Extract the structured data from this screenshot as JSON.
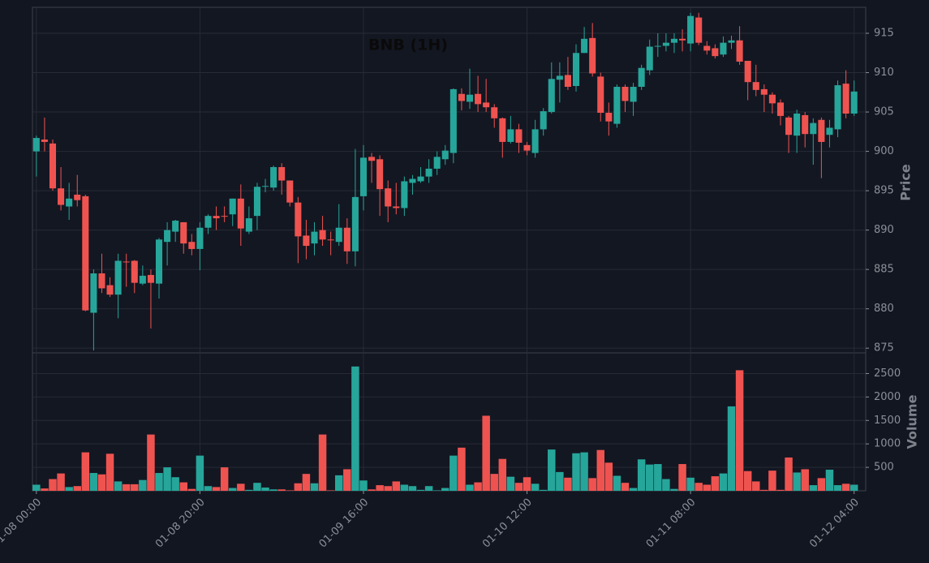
{
  "chart_data": {
    "type": "candlestick",
    "title": "BNB (1H)",
    "ylabel": "Price",
    "volume_ylabel": "Volume",
    "x": [
      "01-08 00:00",
      "01-08 01:00",
      "01-08 02:00",
      "01-08 03:00",
      "01-08 04:00",
      "01-08 05:00",
      "01-08 06:00",
      "01-08 07:00",
      "01-08 08:00",
      "01-08 09:00",
      "01-08 10:00",
      "01-08 11:00",
      "01-08 12:00",
      "01-08 13:00",
      "01-08 14:00",
      "01-08 15:00",
      "01-08 16:00",
      "01-08 17:00",
      "01-08 18:00",
      "01-08 19:00",
      "01-08 20:00",
      "01-08 21:00",
      "01-08 22:00",
      "01-08 23:00",
      "01-09 00:00",
      "01-09 01:00",
      "01-09 02:00",
      "01-09 03:00",
      "01-09 04:00",
      "01-09 05:00",
      "01-09 06:00",
      "01-09 07:00",
      "01-09 08:00",
      "01-09 09:00",
      "01-09 10:00",
      "01-09 11:00",
      "01-09 12:00",
      "01-09 13:00",
      "01-09 14:00",
      "01-09 15:00",
      "01-09 16:00",
      "01-09 17:00",
      "01-09 18:00",
      "01-09 19:00",
      "01-09 20:00",
      "01-09 21:00",
      "01-09 22:00",
      "01-09 23:00",
      "01-10 00:00",
      "01-10 01:00",
      "01-10 02:00",
      "01-10 03:00",
      "01-10 04:00",
      "01-10 05:00",
      "01-10 06:00",
      "01-10 07:00",
      "01-10 08:00",
      "01-10 09:00",
      "01-10 10:00",
      "01-10 11:00",
      "01-10 12:00",
      "01-10 13:00",
      "01-10 14:00",
      "01-10 15:00",
      "01-10 16:00",
      "01-10 17:00",
      "01-10 18:00",
      "01-10 19:00",
      "01-10 20:00",
      "01-10 21:00",
      "01-10 22:00",
      "01-10 23:00",
      "01-11 00:00",
      "01-11 01:00",
      "01-11 02:00",
      "01-11 03:00",
      "01-11 04:00",
      "01-11 05:00",
      "01-11 06:00",
      "01-11 07:00",
      "01-11 08:00",
      "01-11 09:00",
      "01-11 10:00",
      "01-11 11:00",
      "01-11 12:00",
      "01-11 13:00",
      "01-11 14:00",
      "01-11 15:00",
      "01-11 16:00",
      "01-11 17:00",
      "01-11 18:00",
      "01-11 19:00",
      "01-11 20:00",
      "01-11 21:00",
      "01-11 22:00",
      "01-11 23:00",
      "01-12 00:00",
      "01-12 01:00",
      "01-12 02:00",
      "01-12 03:00",
      "01-12 04:00"
    ],
    "open": [
      900,
      901.5,
      901,
      895.3,
      893,
      894.5,
      894.3,
      879.5,
      884.5,
      883,
      881.8,
      886,
      886.1,
      883.2,
      884.3,
      883.2,
      888.5,
      889.8,
      891,
      888.5,
      887.6,
      890.3,
      891.8,
      891.8,
      892,
      894,
      889.8,
      891.8,
      895.5,
      895.4,
      898,
      896.3,
      893.5,
      889.3,
      888.3,
      890,
      888.8,
      888.5,
      890.3,
      887.3,
      894.3,
      899.3,
      899,
      895.3,
      893,
      892.8,
      896,
      896.2,
      896.8,
      897.8,
      899,
      899.8,
      907.3,
      906.3,
      907.3,
      906.2,
      905.6,
      904.2,
      901.2,
      902.8,
      900.8,
      899.8,
      902.8,
      905,
      909.1,
      909.7,
      908.3,
      912.5,
      914.4,
      909.5,
      904.9,
      903.5,
      908.2,
      906.3,
      908.2,
      910.3,
      913.3,
      913.4,
      913.8,
      914.3,
      913.7,
      917,
      913.4,
      913.1,
      912.3,
      913.8,
      914.1,
      911.5,
      908.8,
      907.9,
      907.2,
      906.2,
      904.3,
      902,
      904.6,
      902.2,
      904,
      902.1,
      902.8,
      908.6,
      904.8
    ],
    "high": [
      902,
      904.3,
      901.5,
      898,
      896,
      897,
      894.5,
      885,
      887,
      884,
      887,
      887,
      886.2,
      885.5,
      885,
      889,
      891,
      891.3,
      891,
      889.5,
      891,
      892,
      893,
      893,
      894,
      895.8,
      893,
      896,
      896.5,
      898.2,
      898.5,
      896.3,
      894.2,
      891.3,
      891,
      891.8,
      889.8,
      893.3,
      891.5,
      900.3,
      900.8,
      899.8,
      899.5,
      896.3,
      896,
      896.8,
      897,
      898,
      899,
      900,
      900.8,
      908,
      908,
      910.5,
      909.6,
      909.2,
      906,
      904.3,
      904.5,
      903.5,
      901.2,
      904,
      905.5,
      911.3,
      911.3,
      912,
      913.6,
      915.8,
      916.3,
      910,
      906.2,
      908.5,
      908.5,
      908.7,
      911,
      914.2,
      915,
      915,
      915,
      915.5,
      917.6,
      917.6,
      914,
      913.6,
      914.6,
      914.7,
      915.9,
      911.5,
      911,
      908.5,
      907.5,
      906.6,
      904.5,
      905.3,
      905,
      904.2,
      904.3,
      904,
      909,
      910.3,
      909
    ],
    "low": [
      896.8,
      900,
      895,
      892.5,
      891.3,
      893,
      879.7,
      874.7,
      882,
      881.5,
      878.8,
      882.8,
      882,
      883,
      877.5,
      881.3,
      885.5,
      888.5,
      887,
      886.8,
      884.9,
      889.5,
      890,
      891,
      890.5,
      888,
      889.5,
      890,
      894.8,
      895,
      894.5,
      893,
      885.8,
      886.3,
      886.8,
      888,
      886.8,
      888,
      885.7,
      885.4,
      892.5,
      896,
      891.8,
      891,
      892,
      891.8,
      894.5,
      896,
      896,
      897,
      898.3,
      898.5,
      905.2,
      905.4,
      905,
      905,
      903,
      899.2,
      901,
      899.8,
      899.5,
      899.2,
      902,
      904.8,
      906.2,
      907.8,
      907.6,
      912.5,
      909.5,
      903.8,
      902,
      903,
      905,
      904.5,
      907.8,
      909.7,
      912,
      912.7,
      912.5,
      912.7,
      912.7,
      913.5,
      912.3,
      911.8,
      912,
      913,
      911,
      906.5,
      907,
      905,
      904.8,
      903.3,
      899.8,
      899.8,
      900.5,
      898.3,
      896.6,
      900.5,
      901.8,
      904.2,
      904.5
    ],
    "close": [
      901.7,
      901.2,
      895.3,
      893.2,
      894,
      893.8,
      879.8,
      884.5,
      882.6,
      881.8,
      886.1,
      885.9,
      883.3,
      884.2,
      883.3,
      888.8,
      890,
      891.2,
      888.3,
      887.6,
      890.3,
      891.8,
      891.5,
      891.7,
      894,
      890.2,
      891.5,
      895.5,
      895.6,
      898,
      896.3,
      893.5,
      889.2,
      888,
      889.8,
      888.8,
      888.7,
      890.3,
      887.3,
      894.2,
      899.2,
      898.8,
      895.2,
      893,
      892.8,
      896.2,
      896.5,
      896.8,
      897.8,
      899.3,
      900.1,
      907.9,
      906.4,
      907.2,
      906,
      905.6,
      904.2,
      901.2,
      902.8,
      901.1,
      900.1,
      902.8,
      905.1,
      909.2,
      909.6,
      908.2,
      912.5,
      914.3,
      909.9,
      904.9,
      903.8,
      908.2,
      906.4,
      908.2,
      910.6,
      913.3,
      913.4,
      913.8,
      914.3,
      914.1,
      917.2,
      913.8,
      912.8,
      912.1,
      913.8,
      914.1,
      911.4,
      908.8,
      907.8,
      907.2,
      906.1,
      904.5,
      902.1,
      904.8,
      902.2,
      903.6,
      901.2,
      903,
      908.4,
      904.8,
      907.6
    ],
    "volume": [
      130,
      50,
      250,
      370,
      80,
      100,
      820,
      380,
      350,
      790,
      200,
      140,
      140,
      230,
      1200,
      380,
      500,
      290,
      180,
      40,
      750,
      100,
      80,
      500,
      60,
      150,
      20,
      170,
      70,
      30,
      30,
      10,
      160,
      360,
      160,
      1200,
      10,
      330,
      460,
      2650,
      220,
      30,
      120,
      100,
      200,
      130,
      100,
      20,
      100,
      10,
      60,
      750,
      920,
      130,
      180,
      1600,
      360,
      680,
      300,
      170,
      290,
      150,
      20,
      880,
      400,
      280,
      800,
      820,
      270,
      870,
      600,
      320,
      170,
      60,
      670,
      560,
      570,
      250,
      40,
      570,
      280,
      170,
      130,
      310,
      370,
      1800,
      2570,
      420,
      200,
      20,
      430,
      20,
      710,
      390,
      460,
      120,
      270,
      450,
      120,
      150,
      130
    ],
    "up_color": "#26a69a",
    "down_color": "#ef5350",
    "xticks": [
      "01-08 00:00",
      "01-08 20:00",
      "01-09 16:00",
      "01-10 12:00",
      "01-11 08:00",
      "01-12 04:00"
    ],
    "ylim": [
      874.4,
      918.3
    ],
    "yticks": [
      875,
      880,
      885,
      890,
      895,
      900,
      905,
      910,
      915
    ],
    "volume_ylim": [
      0,
      2940
    ],
    "volume_yticks": [
      500,
      1000,
      1500,
      2000,
      2500
    ],
    "grid": true
  }
}
